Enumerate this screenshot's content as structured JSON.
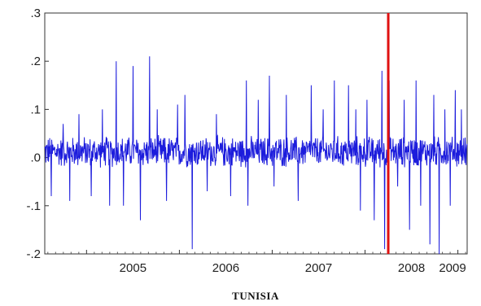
{
  "chart_data": {
    "type": "line",
    "title": "TUNISIA",
    "xlabel": "",
    "ylabel": "",
    "xlim": [
      2004.55,
      2009.1
    ],
    "ylim": [
      -0.2,
      0.3
    ],
    "x_ticks": [
      {
        "value": 2005,
        "label": "2005"
      },
      {
        "value": 2006,
        "label": "2006"
      },
      {
        "value": 2007,
        "label": "2007"
      },
      {
        "value": 2008,
        "label": "2008"
      },
      {
        "value": 2009,
        "label": "2009"
      }
    ],
    "y_ticks": [
      {
        "value": 0.3,
        "label": ".3"
      },
      {
        "value": 0.2,
        "label": ".2"
      },
      {
        "value": 0.1,
        "label": ".1"
      },
      {
        "value": 0.0,
        "label": ".0"
      },
      {
        "value": -0.1,
        "label": "-.1"
      },
      {
        "value": -0.2,
        "label": "-.2"
      }
    ],
    "grid": false,
    "legend": "none",
    "series": [
      {
        "color": "#1c1cdc",
        "baseline_noise": 0.03,
        "spikes": [
          {
            "x": 2004.62,
            "y": -0.08
          },
          {
            "x": 2004.75,
            "y": 0.07
          },
          {
            "x": 2004.82,
            "y": -0.09
          },
          {
            "x": 2004.92,
            "y": 0.09
          },
          {
            "x": 2005.05,
            "y": -0.08
          },
          {
            "x": 2005.17,
            "y": 0.1
          },
          {
            "x": 2005.25,
            "y": -0.1
          },
          {
            "x": 2005.32,
            "y": 0.2
          },
          {
            "x": 2005.4,
            "y": -0.1
          },
          {
            "x": 2005.5,
            "y": 0.19
          },
          {
            "x": 2005.58,
            "y": -0.13
          },
          {
            "x": 2005.68,
            "y": 0.21
          },
          {
            "x": 2005.76,
            "y": 0.1
          },
          {
            "x": 2005.86,
            "y": -0.09
          },
          {
            "x": 2005.98,
            "y": 0.11
          },
          {
            "x": 2006.06,
            "y": 0.13
          },
          {
            "x": 2006.14,
            "y": -0.19
          },
          {
            "x": 2006.3,
            "y": -0.07
          },
          {
            "x": 2006.4,
            "y": 0.09
          },
          {
            "x": 2006.55,
            "y": -0.08
          },
          {
            "x": 2006.72,
            "y": 0.16
          },
          {
            "x": 2006.74,
            "y": -0.1
          },
          {
            "x": 2006.85,
            "y": 0.12
          },
          {
            "x": 2006.97,
            "y": 0.17
          },
          {
            "x": 2007.02,
            "y": -0.06
          },
          {
            "x": 2007.15,
            "y": 0.13
          },
          {
            "x": 2007.28,
            "y": -0.09
          },
          {
            "x": 2007.42,
            "y": 0.15
          },
          {
            "x": 2007.55,
            "y": 0.1
          },
          {
            "x": 2007.67,
            "y": 0.16
          },
          {
            "x": 2007.82,
            "y": 0.15
          },
          {
            "x": 2007.9,
            "y": 0.1
          },
          {
            "x": 2007.95,
            "y": -0.11
          },
          {
            "x": 2008.02,
            "y": 0.12
          },
          {
            "x": 2008.1,
            "y": -0.13
          },
          {
            "x": 2008.18,
            "y": 0.18
          },
          {
            "x": 2008.21,
            "y": -0.19
          },
          {
            "x": 2008.26,
            "y": 0.16
          },
          {
            "x": 2008.35,
            "y": -0.06
          },
          {
            "x": 2008.42,
            "y": 0.12
          },
          {
            "x": 2008.48,
            "y": -0.15
          },
          {
            "x": 2008.55,
            "y": 0.16
          },
          {
            "x": 2008.6,
            "y": -0.1
          },
          {
            "x": 2008.7,
            "y": -0.18
          },
          {
            "x": 2008.74,
            "y": 0.13
          },
          {
            "x": 2008.8,
            "y": -0.2
          },
          {
            "x": 2008.86,
            "y": 0.1
          },
          {
            "x": 2008.92,
            "y": -0.1
          },
          {
            "x": 2008.97,
            "y": 0.14
          },
          {
            "x": 2009.04,
            "y": 0.1
          }
        ]
      }
    ],
    "vertical_line": {
      "x": 2008.25,
      "color": "#e01010"
    }
  }
}
